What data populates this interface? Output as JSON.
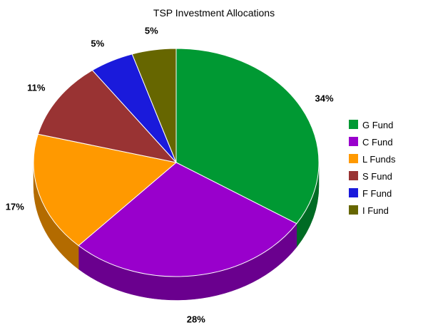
{
  "chart_data": {
    "type": "pie",
    "title": "TSP Investment Allocations",
    "legend_position": "right",
    "slices": [
      {
        "label": "G Fund",
        "value": 34,
        "value_label": "34%",
        "color": "#009933",
        "side_color": "#006b24"
      },
      {
        "label": "C Fund",
        "value": 28,
        "value_label": "28%",
        "color": "#9900cc",
        "side_color": "#6a008e"
      },
      {
        "label": "L Funds",
        "value": 17,
        "value_label": "17%",
        "color": "#ff9900",
        "side_color": "#b36b00"
      },
      {
        "label": "S Fund",
        "value": 11,
        "value_label": "11%",
        "color": "#993333",
        "side_color": "#6b2323"
      },
      {
        "label": "F Fund",
        "value": 5,
        "value_label": "5%",
        "color": "#1a1adb",
        "side_color": "#10108f"
      },
      {
        "label": "I Fund",
        "value": 5,
        "value_label": "5%",
        "color": "#666600",
        "side_color": "#474700"
      }
    ]
  }
}
